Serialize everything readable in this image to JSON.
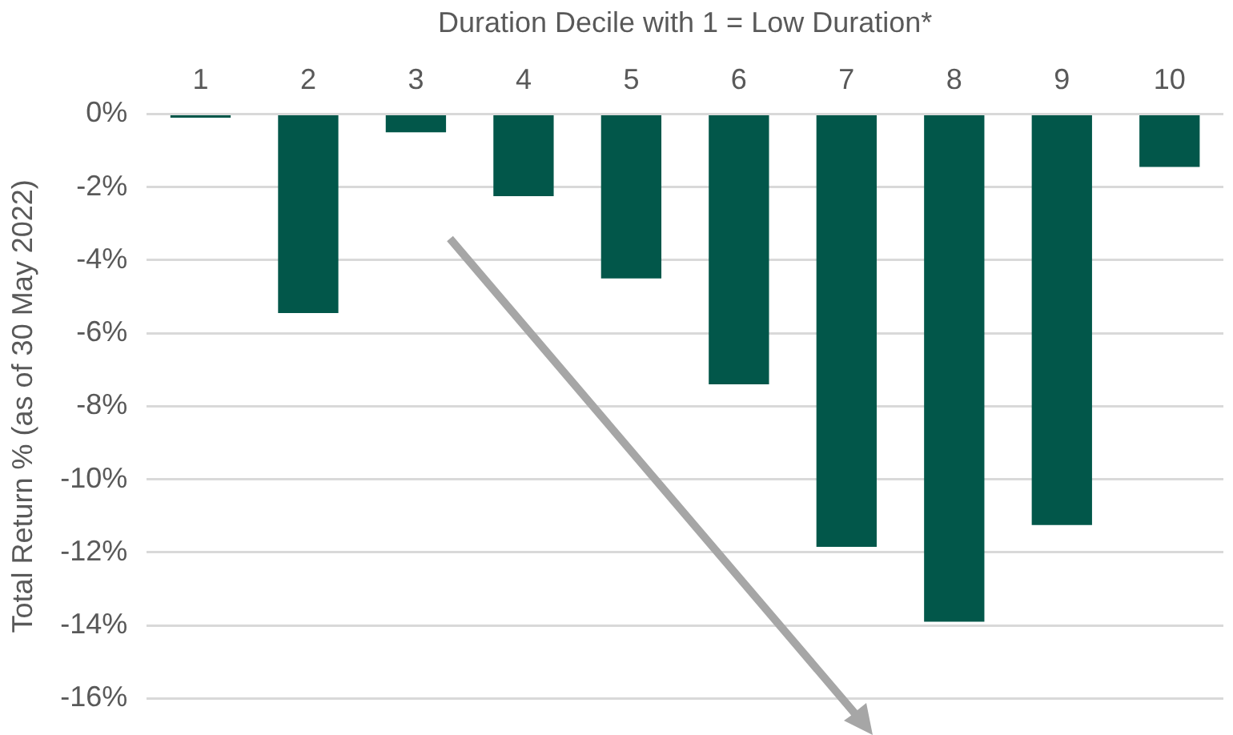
{
  "chart_data": {
    "type": "bar",
    "xlabel": "Duration Decile with 1 = Low Duration*",
    "ylabel": "Total Return % (as of 30 May 2022)",
    "categories": [
      "1",
      "2",
      "3",
      "4",
      "5",
      "6",
      "7",
      "8",
      "9",
      "10"
    ],
    "values": [
      -0.1,
      -5.45,
      -0.5,
      -2.25,
      -4.5,
      -7.4,
      -11.85,
      -13.9,
      -11.25,
      -1.45
    ],
    "color": "#02574a",
    "ylim": [
      -16,
      0
    ],
    "yticks": [
      {
        "value": -16,
        "label": "-16%"
      },
      {
        "value": -14,
        "label": "-14%"
      },
      {
        "value": -12,
        "label": "-12%"
      },
      {
        "value": -10,
        "label": "-10%"
      },
      {
        "value": -8,
        "label": "-8%"
      },
      {
        "value": -6,
        "label": "-6%"
      },
      {
        "value": -4,
        "label": "-4%"
      },
      {
        "value": -2,
        "label": "-2%"
      },
      {
        "value": 0,
        "label": "0%"
      }
    ],
    "grid": "y",
    "legend": false
  }
}
